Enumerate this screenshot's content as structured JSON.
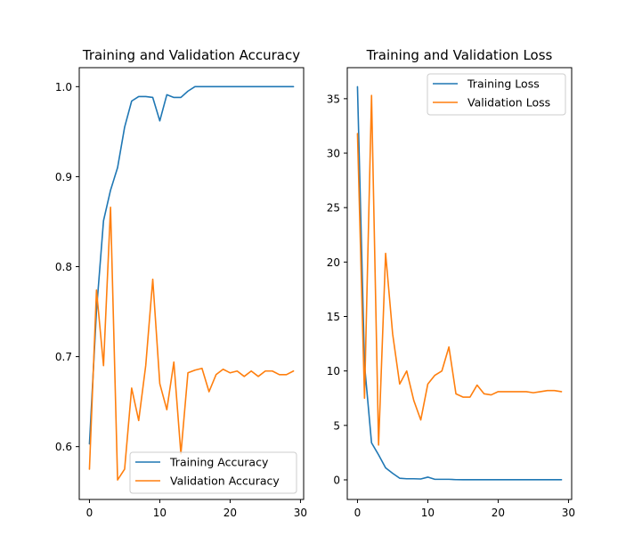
{
  "chart_data": [
    {
      "type": "line",
      "title": "Training and Validation Accuracy",
      "xlabel": "",
      "ylabel": "",
      "xlim": [
        -1.45,
        30.45
      ],
      "ylim": [
        0.5413,
        1.0211
      ],
      "xticks": [
        0,
        10,
        20,
        30
      ],
      "yticks": [
        0.6,
        0.7,
        0.8,
        0.9,
        1.0
      ],
      "ytick_labels": [
        "0.6",
        "0.7",
        "0.8",
        "0.9",
        "1.0"
      ],
      "legend_position": "lower-right",
      "x": [
        0,
        1,
        2,
        3,
        4,
        5,
        6,
        7,
        8,
        9,
        10,
        11,
        12,
        13,
        14,
        15,
        16,
        17,
        18,
        19,
        20,
        21,
        22,
        23,
        24,
        25,
        26,
        27,
        28,
        29
      ],
      "series": [
        {
          "name": "Training Accuracy",
          "color": "#1f77b4",
          "values": [
            0.603,
            0.751,
            0.851,
            0.885,
            0.91,
            0.955,
            0.984,
            0.989,
            0.989,
            0.988,
            0.962,
            0.991,
            0.988,
            0.988,
            0.995,
            1.0,
            1.0,
            1.0,
            1.0,
            1.0,
            1.0,
            1.0,
            1.0,
            1.0,
            1.0,
            1.0,
            1.0,
            1.0,
            1.0,
            1.0
          ]
        },
        {
          "name": "Validation Accuracy",
          "color": "#ff7f0e",
          "values": [
            0.575,
            0.774,
            0.69,
            0.866,
            0.563,
            0.575,
            0.665,
            0.629,
            0.69,
            0.786,
            0.67,
            0.641,
            0.694,
            0.592,
            0.682,
            0.685,
            0.687,
            0.661,
            0.68,
            0.686,
            0.682,
            0.684,
            0.678,
            0.684,
            0.678,
            0.684,
            0.684,
            0.68,
            0.68,
            0.684
          ]
        }
      ]
    },
    {
      "type": "line",
      "title": "Training and Validation Loss",
      "xlabel": "",
      "ylabel": "",
      "xlim": [
        -1.45,
        30.45
      ],
      "ylim": [
        -1.8,
        37.85
      ],
      "xticks": [
        0,
        10,
        20,
        30
      ],
      "yticks": [
        0,
        5,
        10,
        15,
        20,
        25,
        30,
        35
      ],
      "ytick_labels": [
        "0",
        "5",
        "10",
        "15",
        "20",
        "25",
        "30",
        "35"
      ],
      "legend_position": "upper-right",
      "x": [
        0,
        1,
        2,
        3,
        4,
        5,
        6,
        7,
        8,
        9,
        10,
        11,
        12,
        13,
        14,
        15,
        16,
        17,
        18,
        19,
        20,
        21,
        22,
        23,
        24,
        25,
        26,
        27,
        28,
        29
      ],
      "series": [
        {
          "name": "Training Loss",
          "color": "#1f77b4",
          "values": [
            36.1,
            10.6,
            3.4,
            2.3,
            1.1,
            0.6,
            0.15,
            0.1,
            0.1,
            0.08,
            0.25,
            0.05,
            0.05,
            0.05,
            0.02,
            0.01,
            0.01,
            0.01,
            0.01,
            0.01,
            0.01,
            0.01,
            0.01,
            0.01,
            0.01,
            0.01,
            0.01,
            0.01,
            0.01,
            0.01
          ]
        },
        {
          "name": "Validation Loss",
          "color": "#ff7f0e",
          "values": [
            31.8,
            7.5,
            35.3,
            3.2,
            20.8,
            13.4,
            8.8,
            10.0,
            7.3,
            5.5,
            8.8,
            9.6,
            10.0,
            12.2,
            7.9,
            7.6,
            7.6,
            8.7,
            7.9,
            7.8,
            8.1,
            8.1,
            8.1,
            8.1,
            8.1,
            8.0,
            8.1,
            8.2,
            8.2,
            8.1
          ]
        }
      ]
    }
  ]
}
